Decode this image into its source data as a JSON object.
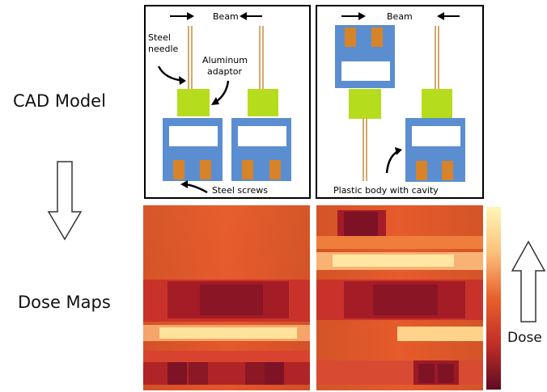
{
  "labels": {
    "cad_model": "CAD Model",
    "dose_maps": "Dose Maps",
    "dose": "Dose"
  },
  "panel_left": {
    "beam": "Beam",
    "steel_needle_1": "Steel",
    "steel_needle_2": "needle",
    "aluminum_1": "Aluminum",
    "aluminum_2": "adaptor",
    "steel_screws": "Steel screws"
  },
  "panel_right": {
    "beam": "Beam",
    "plastic_body": "Plastic body with cavity"
  },
  "colors": {
    "plastic_body": "#5B8ED0",
    "aluminum_adaptor": "#B6DC1E",
    "steel_screw": "#D7832A",
    "needle": "#C98C3A",
    "dose_low": "#6A0F22",
    "dose_mid": "#E4582A",
    "dose_high": "#FFF6B8"
  }
}
